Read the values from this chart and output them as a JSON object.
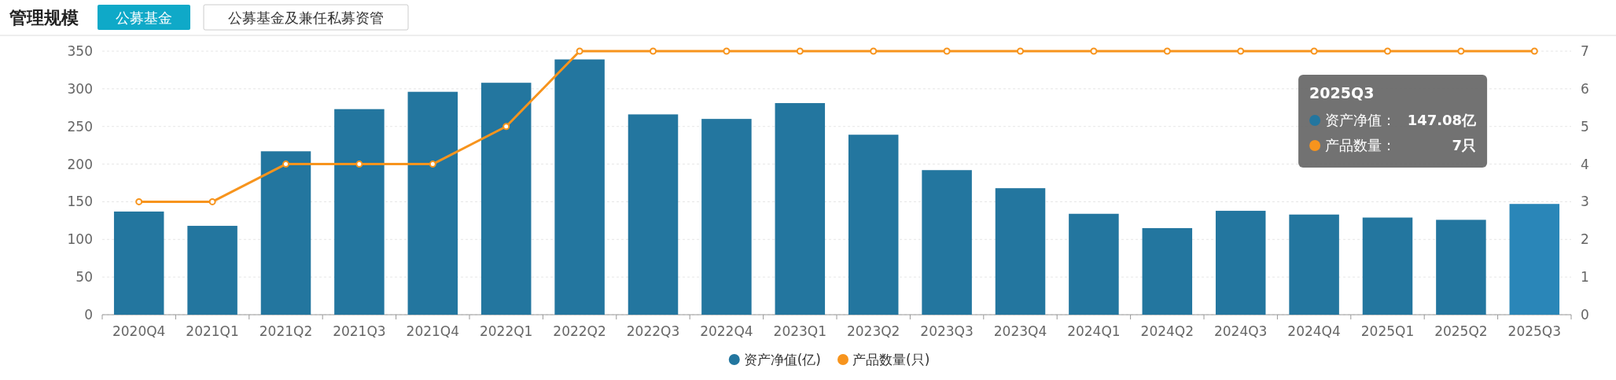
{
  "chart_data": {
    "type": "bar",
    "title": "管理规模",
    "annotations": [
      "公募基金",
      "公募基金及兼任私募资管",
      "2025Q3",
      "资产净值：",
      "147.08亿",
      "产品数量：",
      "7只"
    ],
    "categories": [
      "2020Q4",
      "2021Q1",
      "2021Q2",
      "2021Q3",
      "2021Q4",
      "2022Q1",
      "2022Q2",
      "2022Q3",
      "2022Q4",
      "2023Q1",
      "2023Q2",
      "2023Q3",
      "2023Q4",
      "2024Q1",
      "2024Q2",
      "2024Q3",
      "2024Q4",
      "2025Q1",
      "2025Q2",
      "2025Q3"
    ],
    "series": [
      {
        "name": "资产净值(亿)",
        "color": "#23769f",
        "colors": [
          "#23769f",
          "#23769f",
          "#23769f",
          "#23769f",
          "#23769f",
          "#23769f",
          "#23769f",
          "#23769f",
          "#23769f",
          "#23769f",
          "#23769f",
          "#23769f",
          "#23769f",
          "#23769f",
          "#23769f",
          "#23769f",
          "#23769f",
          "#23769f",
          "#23769f",
          "#2a86b8"
        ],
        "values": [
          137,
          118,
          217,
          273,
          296,
          308,
          339,
          266,
          260,
          281,
          239,
          192,
          168,
          134,
          115,
          138,
          133,
          129,
          126,
          147.08
        ]
      },
      {
        "name": "产品数量(只)",
        "type": "line",
        "axis": "y2",
        "color": "#f7941d",
        "values": [
          3,
          3,
          4,
          4,
          4,
          5,
          7,
          7,
          7,
          7,
          7,
          7,
          7,
          7,
          7,
          7,
          7,
          7,
          7,
          7
        ]
      }
    ],
    "ylim": [
      0,
      350
    ],
    "yticks": [
      0,
      50,
      100,
      150,
      200,
      250,
      300,
      350
    ],
    "y2lim": [
      0,
      7
    ],
    "y2ticks": [
      0,
      1,
      2,
      3,
      4,
      5,
      6,
      7
    ],
    "grid": "y",
    "legend": "bottom",
    "marker": "circle"
  }
}
